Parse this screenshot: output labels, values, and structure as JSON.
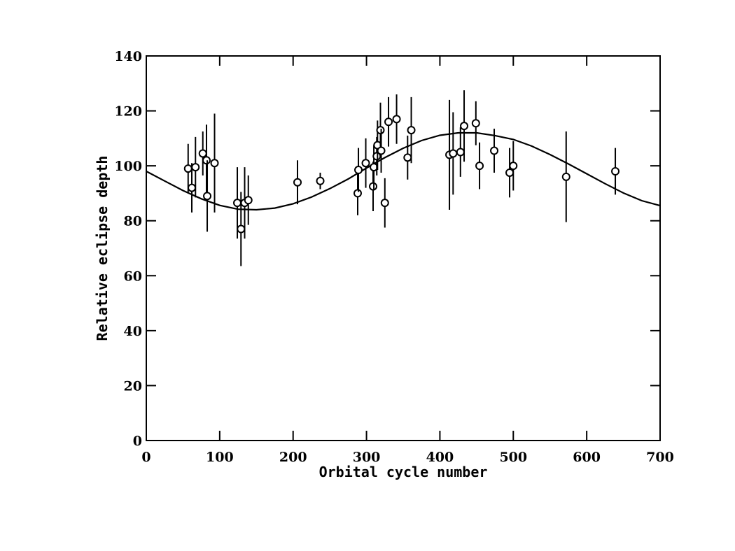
{
  "chart_data": {
    "type": "scatter",
    "xlabel": "Orbital cycle number",
    "ylabel": "Relative eclipse depth",
    "xlim": [
      0,
      700
    ],
    "ylim": [
      0,
      140
    ],
    "x_ticks": [
      0,
      100,
      200,
      300,
      400,
      500,
      600,
      700
    ],
    "y_ticks": [
      0,
      20,
      40,
      60,
      80,
      100,
      120,
      140
    ],
    "grid": false,
    "series": [
      {
        "kind": "points_with_errorbars",
        "points": [
          {
            "x": 57,
            "y": 99,
            "err": 9
          },
          {
            "x": 62,
            "y": 92,
            "err": 9
          },
          {
            "x": 67,
            "y": 99.5,
            "err": 11
          },
          {
            "x": 77,
            "y": 104.5,
            "err": 8
          },
          {
            "x": 82,
            "y": 102,
            "err": 13
          },
          {
            "x": 83,
            "y": 89,
            "err": 13
          },
          {
            "x": 93,
            "y": 101,
            "err": 18
          },
          {
            "x": 124,
            "y": 86.5,
            "err": 13
          },
          {
            "x": 129,
            "y": 77,
            "err": 13.5
          },
          {
            "x": 134,
            "y": 86.5,
            "err": 13
          },
          {
            "x": 139,
            "y": 87.5,
            "err": 9
          },
          {
            "x": 206,
            "y": 94,
            "err": 8
          },
          {
            "x": 237,
            "y": 94.5,
            "err": 3
          },
          {
            "x": 288,
            "y": 90,
            "err": 8
          },
          {
            "x": 289,
            "y": 98.5,
            "err": 8
          },
          {
            "x": 299,
            "y": 101,
            "err": 9
          },
          {
            "x": 309,
            "y": 92.5,
            "err": 9
          },
          {
            "x": 310,
            "y": 99.5,
            "err": 8
          },
          {
            "x": 314,
            "y": 103.5,
            "err": 7
          },
          {
            "x": 315,
            "y": 107.5,
            "err": 9
          },
          {
            "x": 319,
            "y": 113,
            "err": 10
          },
          {
            "x": 320,
            "y": 105.5,
            "err": 8
          },
          {
            "x": 325,
            "y": 86.5,
            "err": 9
          },
          {
            "x": 330,
            "y": 116,
            "err": 9
          },
          {
            "x": 341,
            "y": 117,
            "err": 9
          },
          {
            "x": 356,
            "y": 103,
            "err": 8
          },
          {
            "x": 361,
            "y": 113,
            "err": 12
          },
          {
            "x": 413,
            "y": 104,
            "err": 20
          },
          {
            "x": 418,
            "y": 104.5,
            "err": 15
          },
          {
            "x": 428,
            "y": 105,
            "err": 9
          },
          {
            "x": 433,
            "y": 114.5,
            "err": 13
          },
          {
            "x": 449,
            "y": 115.5,
            "err": 8
          },
          {
            "x": 454,
            "y": 100,
            "err": 8.5
          },
          {
            "x": 474,
            "y": 105.5,
            "err": 8
          },
          {
            "x": 495,
            "y": 97.5,
            "err": 9
          },
          {
            "x": 500,
            "y": 100,
            "err": 9
          },
          {
            "x": 572,
            "y": 96,
            "err": 16.5
          },
          {
            "x": 639,
            "y": 98,
            "err": 8.5
          }
        ]
      },
      {
        "kind": "line",
        "points": [
          [
            0,
            98
          ],
          [
            25,
            94.5
          ],
          [
            50,
            91
          ],
          [
            75,
            88
          ],
          [
            100,
            85.6
          ],
          [
            125,
            84.2
          ],
          [
            150,
            84
          ],
          [
            175,
            84.6
          ],
          [
            200,
            86.2
          ],
          [
            225,
            88.6
          ],
          [
            250,
            91.7
          ],
          [
            275,
            95.2
          ],
          [
            300,
            99.2
          ],
          [
            325,
            103
          ],
          [
            350,
            106.4
          ],
          [
            375,
            109.2
          ],
          [
            400,
            111.1
          ],
          [
            425,
            112
          ],
          [
            450,
            112
          ],
          [
            475,
            111
          ],
          [
            500,
            109.6
          ],
          [
            525,
            107.2
          ],
          [
            550,
            104.1
          ],
          [
            575,
            100.7
          ],
          [
            600,
            97.1
          ],
          [
            625,
            93.5
          ],
          [
            650,
            90.1
          ],
          [
            675,
            87.3
          ],
          [
            700,
            85.5
          ]
        ]
      }
    ]
  }
}
